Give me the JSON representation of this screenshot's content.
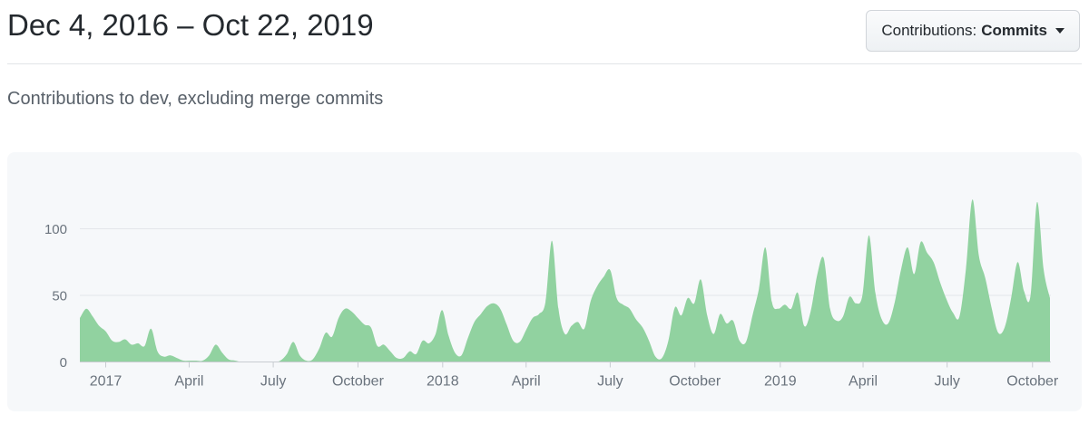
{
  "header": {
    "title": "Dec 4, 2016 – Oct 22, 2019",
    "filter": {
      "prefix": "Contributions:",
      "selected": "Commits"
    }
  },
  "subtitle": "Contributions to dev, excluding merge commits",
  "chart_data": {
    "type": "area",
    "series_name": "commits per week",
    "date_range": {
      "start": "Dec 4, 2016",
      "end": "Oct 22, 2019"
    },
    "x_ticks": [
      {
        "label": "2017",
        "week": 4.0
      },
      {
        "label": "April",
        "week": 16.9
      },
      {
        "label": "July",
        "week": 29.9
      },
      {
        "label": "October",
        "week": 43.0
      },
      {
        "label": "2018",
        "week": 56.1
      },
      {
        "label": "April",
        "week": 69.0
      },
      {
        "label": "July",
        "week": 82.0
      },
      {
        "label": "October",
        "week": 95.1
      },
      {
        "label": "2019",
        "week": 108.3
      },
      {
        "label": "April",
        "week": 121.1
      },
      {
        "label": "July",
        "week": 134.1
      },
      {
        "label": "October",
        "week": 147.3
      }
    ],
    "y_ticks": [
      0,
      50,
      100
    ],
    "ylim": [
      0,
      135
    ],
    "grid": true,
    "values": [
      33,
      40,
      34,
      27,
      23,
      16,
      15,
      17,
      13,
      14,
      12,
      25,
      8,
      4,
      5,
      3,
      1,
      1,
      1,
      1,
      5,
      13,
      7,
      2,
      1,
      0,
      0,
      0,
      0,
      0,
      0,
      1,
      6,
      15,
      5,
      1,
      2,
      10,
      22,
      19,
      33,
      40,
      38,
      33,
      28,
      26,
      12,
      13,
      8,
      3,
      3,
      8,
      6,
      16,
      14,
      21,
      39,
      20,
      7,
      5,
      18,
      30,
      36,
      42,
      44,
      40,
      28,
      16,
      15,
      24,
      33,
      36,
      45,
      91,
      40,
      21,
      27,
      30,
      25,
      46,
      57,
      64,
      69,
      48,
      43,
      40,
      32,
      26,
      16,
      4,
      3,
      16,
      41,
      35,
      48,
      44,
      62,
      35,
      21,
      36,
      29,
      31,
      16,
      15,
      35,
      55,
      86,
      45,
      40,
      43,
      40,
      52,
      27,
      38,
      65,
      78,
      40,
      31,
      34,
      49,
      44,
      50,
      95,
      52,
      32,
      29,
      45,
      70,
      86,
      66,
      90,
      82,
      75,
      60,
      47,
      37,
      34,
      70,
      122,
      80,
      63,
      40,
      22,
      26,
      48,
      75,
      53,
      50,
      120,
      70,
      48
    ],
    "colors": {
      "area_fill": "#91d2a0",
      "gridline": "#e3e6ea",
      "axis_line": "#c8ccd1",
      "axis_label": "#6a737d",
      "card_background": "#f6f8fa"
    }
  }
}
